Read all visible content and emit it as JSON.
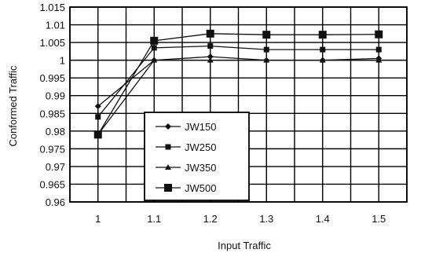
{
  "chart_data": {
    "type": "line",
    "title": "",
    "xlabel": "Input Traffic",
    "ylabel": "Conformed Traffic",
    "categories": [
      "1",
      "1.1",
      "1.2",
      "1.3",
      "1.4",
      "1.5"
    ],
    "y_ticks": [
      "0.96",
      "0.965",
      "0.97",
      "0.975",
      "0.98",
      "0.985",
      "0.99",
      "0.995",
      "1",
      "1.005",
      "1.01",
      "1.015"
    ],
    "ylim": [
      0.96,
      1.015
    ],
    "grid": true,
    "legend_position": "bottom-left",
    "series": [
      {
        "name": "JW150",
        "marker": "diamond",
        "values": [
          0.987,
          1.0,
          1.001,
          1.0,
          1.0,
          1.0005
        ]
      },
      {
        "name": "JW250",
        "marker": "square",
        "values": [
          0.984,
          1.0035,
          1.004,
          1.003,
          1.003,
          1.003
        ]
      },
      {
        "name": "JW350",
        "marker": "triangle",
        "values": [
          0.979,
          1.0,
          1.0,
          1.0,
          1.0,
          1.0
        ]
      },
      {
        "name": "JW500",
        "marker": "square-large",
        "values": [
          0.979,
          1.0055,
          1.0075,
          1.0072,
          1.0072,
          1.0073
        ]
      }
    ]
  }
}
